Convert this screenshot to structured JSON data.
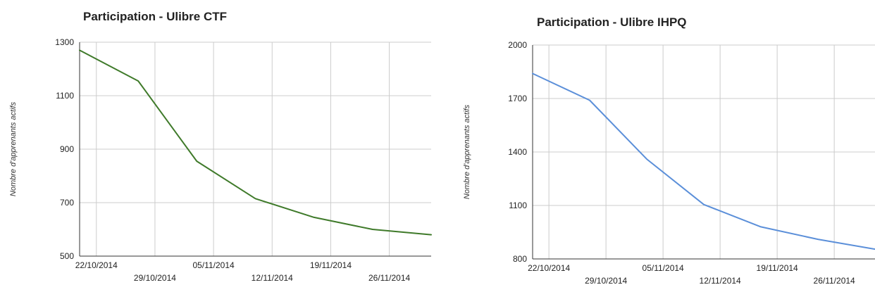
{
  "chart_data": [
    {
      "type": "line",
      "title": "Participation - Ulibre CTF",
      "xlabel": "",
      "ylabel": "Nombre d'apprenants actifs",
      "x_ticks": [
        "22/10/2014",
        "29/10/2014",
        "05/11/2014",
        "12/11/2014",
        "19/11/2014",
        "26/11/2014"
      ],
      "y_ticks": [
        500,
        700,
        900,
        1100,
        1300
      ],
      "ylim": [
        500,
        1300
      ],
      "xlim": [
        "2014-10-20",
        "2014-12-01"
      ],
      "grid": true,
      "color": "#3f7a2a",
      "series": [
        {
          "x": [
            "2014-10-20",
            "2014-10-27",
            "2014-11-03",
            "2014-11-10",
            "2014-11-17",
            "2014-11-24",
            "2014-12-01"
          ],
          "y": [
            1270,
            1155,
            855,
            715,
            645,
            600,
            580
          ]
        }
      ]
    },
    {
      "type": "line",
      "title": "Participation - Ulibre IHPQ",
      "xlabel": "",
      "ylabel": "Nombre d'apprenants actifs",
      "x_ticks": [
        "22/10/2014",
        "29/10/2014",
        "05/11/2014",
        "12/11/2014",
        "19/11/2014",
        "26/11/2014"
      ],
      "y_ticks": [
        800,
        1100,
        1400,
        1700,
        2000
      ],
      "ylim": [
        800,
        2000
      ],
      "xlim": [
        "2014-10-20",
        "2014-12-01"
      ],
      "grid": true,
      "color": "#5b8fd9",
      "series": [
        {
          "x": [
            "2014-10-20",
            "2014-10-27",
            "2014-11-03",
            "2014-11-10",
            "2014-11-17",
            "2014-11-24",
            "2014-12-01"
          ],
          "y": [
            1840,
            1690,
            1360,
            1105,
            980,
            910,
            855
          ]
        }
      ]
    }
  ]
}
